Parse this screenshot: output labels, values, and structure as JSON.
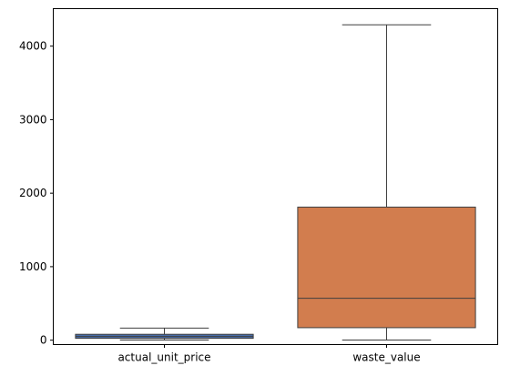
{
  "chart_data": {
    "type": "box",
    "title": "",
    "xlabel": "",
    "ylabel": "",
    "categories": [
      "actual_unit_price",
      "waste_value"
    ],
    "colors": [
      "#4c72b0",
      "#dd8452"
    ],
    "ylim": [
      -60,
      4510
    ],
    "yticks": [
      0,
      1000,
      2000,
      3000,
      4000
    ],
    "ytick_labels": [
      "0",
      "1000",
      "2000",
      "3000",
      "4000"
    ],
    "grid": false,
    "legend": "none",
    "boxes": [
      {
        "category": "actual_unit_price",
        "whisker_low": 2,
        "q1": 25,
        "median": 50,
        "q3": 80,
        "whisker_high": 165
      },
      {
        "category": "waste_value",
        "whisker_low": 2,
        "q1": 170,
        "median": 570,
        "q3": 1810,
        "whisker_high": 4290
      }
    ]
  }
}
